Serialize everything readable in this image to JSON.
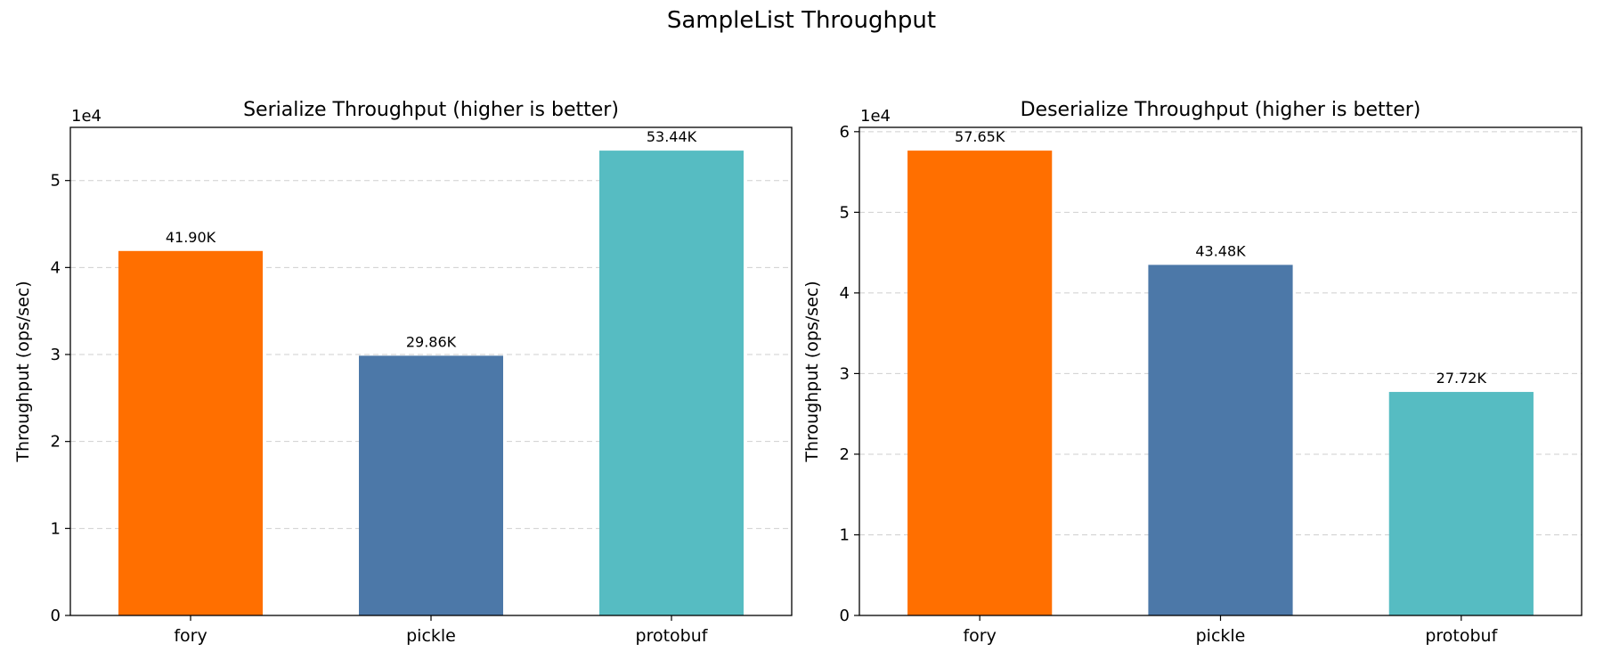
{
  "figure": {
    "title": "SampleList Throughput"
  },
  "chart_data": [
    {
      "type": "bar",
      "title": "Serialize Throughput (higher is better)",
      "xlabel": "",
      "ylabel": "Throughput (ops/sec)",
      "y_scale_label": "1e4",
      "categories": [
        "fory",
        "pickle",
        "protobuf"
      ],
      "values": [
        41900,
        29860,
        53440
      ],
      "data_labels": [
        "41.90K",
        "29.86K",
        "53.44K"
      ],
      "colors": [
        "#ff6f00",
        "#4c78a8",
        "#56bcc2"
      ],
      "ylim": [
        0,
        56112
      ],
      "yticks": [
        0,
        10000,
        20000,
        30000,
        40000,
        50000
      ],
      "ytick_labels": [
        "0",
        "1",
        "2",
        "3",
        "4",
        "5"
      ],
      "grid": "y-dashed",
      "legend": "none"
    },
    {
      "type": "bar",
      "title": "Deserialize Throughput (higher is better)",
      "xlabel": "",
      "ylabel": "Throughput (ops/sec)",
      "y_scale_label": "1e4",
      "categories": [
        "fory",
        "pickle",
        "protobuf"
      ],
      "values": [
        57650,
        43480,
        27720
      ],
      "data_labels": [
        "57.65K",
        "43.48K",
        "27.72K"
      ],
      "colors": [
        "#ff6f00",
        "#4c78a8",
        "#56bcc2"
      ],
      "ylim": [
        0,
        60533
      ],
      "yticks": [
        0,
        10000,
        20000,
        30000,
        40000,
        50000,
        60000
      ],
      "ytick_labels": [
        "0",
        "1",
        "2",
        "3",
        "4",
        "5",
        "6"
      ],
      "grid": "y-dashed",
      "legend": "none"
    }
  ]
}
